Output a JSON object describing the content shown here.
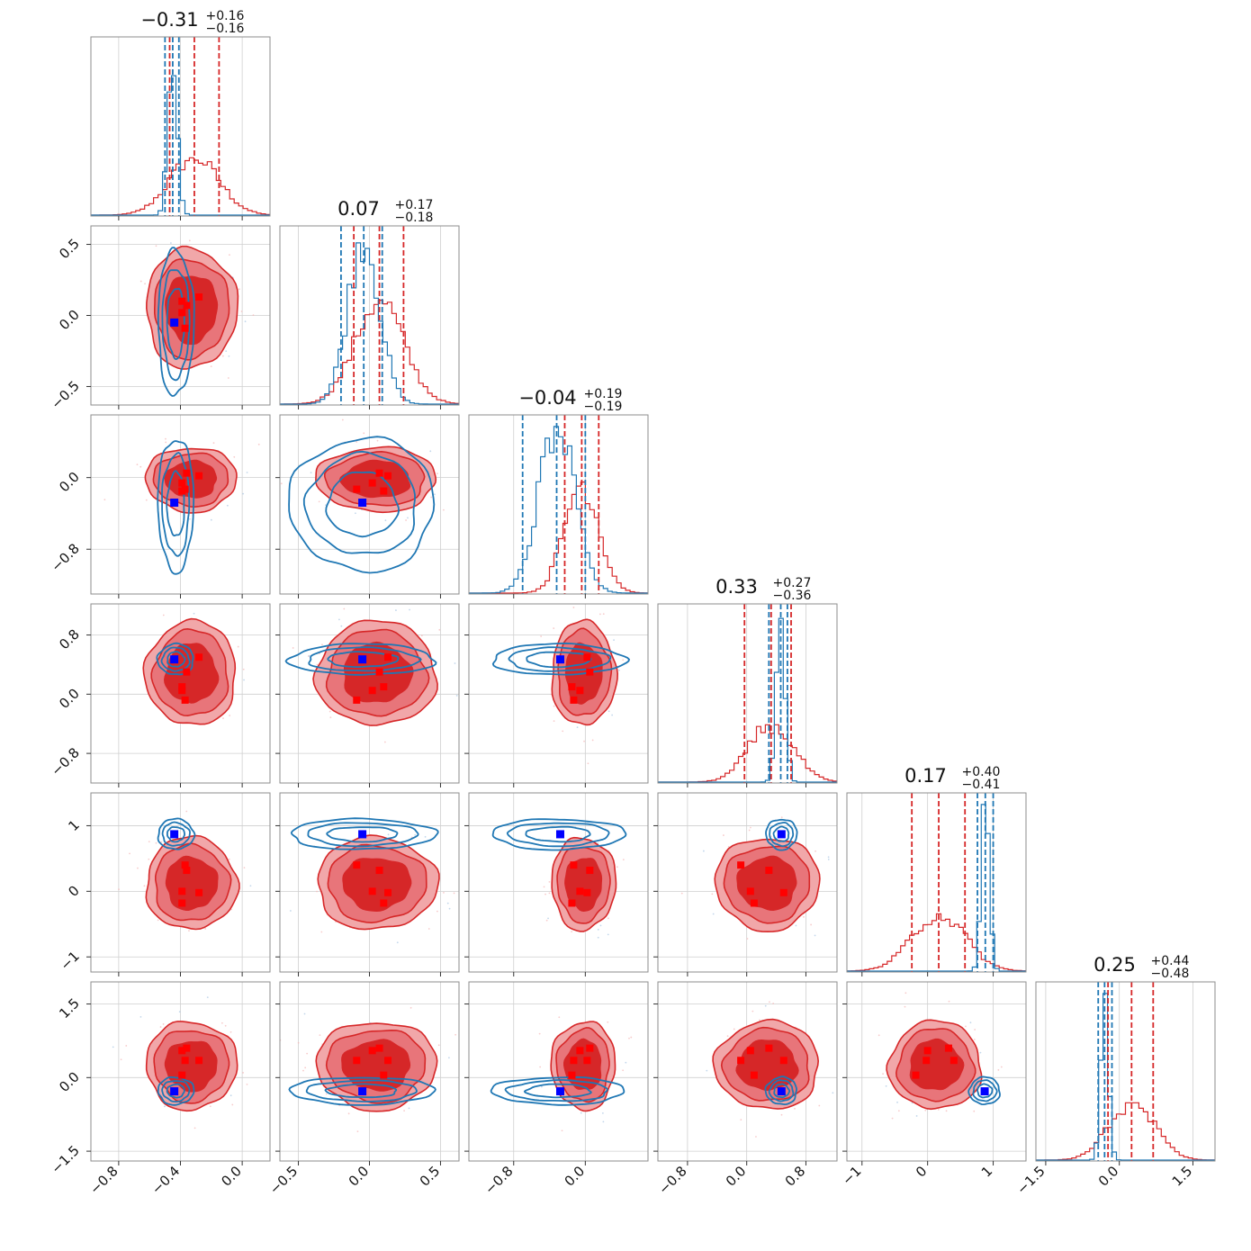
{
  "chart_data": {
    "type": "corner",
    "n_params": 6,
    "grid": true,
    "colors": {
      "red_posterior": "#d62728",
      "blue_posterior": "#1f77b4",
      "truth_marker": "#0000ff",
      "red_marker": "#ff0000"
    },
    "params": [
      {
        "median": "-0.31",
        "plus": "+0.16",
        "minus": "-0.16",
        "range": [
          -0.98,
          0.18
        ],
        "ticks": [
          -0.8,
          -0.4,
          0.0
        ],
        "tick_labels": [
          "−0.8",
          "−0.4",
          "0.0"
        ]
      },
      {
        "median": "0.07",
        "plus": "+0.17",
        "minus": "-0.18",
        "range": [
          -0.63,
          0.63
        ],
        "ticks": [
          -0.5,
          0.0,
          0.5
        ],
        "tick_labels": [
          "−0.5",
          "0.0",
          "0.5"
        ]
      },
      {
        "median": "-0.04",
        "plus": "+0.19",
        "minus": "-0.19",
        "range": [
          -1.3,
          0.7
        ],
        "ticks": [
          -0.8,
          0.0
        ],
        "tick_labels": [
          "−0.8",
          "0.0"
        ]
      },
      {
        "median": "0.33",
        "plus": "+0.27",
        "minus": "-0.36",
        "range": [
          -1.2,
          1.22
        ],
        "ticks": [
          -0.8,
          0.0,
          0.8
        ],
        "tick_labels": [
          "−0.8",
          "0.0",
          "0.8"
        ]
      },
      {
        "median": "0.17",
        "plus": "+0.40",
        "minus": "-0.41",
        "range": [
          -1.23,
          1.5
        ],
        "ticks": [
          -1,
          0,
          1
        ],
        "tick_labels": [
          "−1",
          "0",
          "1"
        ]
      },
      {
        "median": "0.25",
        "plus": "+0.44",
        "minus": "-0.48",
        "range": [
          -1.7,
          1.95
        ],
        "ticks": [
          -1.5,
          0.0,
          1.5
        ],
        "tick_labels": [
          "−1.5",
          "0.0",
          "1.5"
        ]
      }
    ],
    "red_quantiles": [
      [
        -0.47,
        -0.31,
        -0.15
      ],
      [
        -0.11,
        0.07,
        0.24
      ],
      [
        -0.23,
        -0.04,
        0.15
      ],
      [
        -0.03,
        0.33,
        0.6
      ],
      [
        -0.24,
        0.17,
        0.57
      ],
      [
        -0.23,
        0.25,
        0.69
      ]
    ],
    "blue_quantiles": [
      [
        -0.5,
        -0.45,
        -0.41
      ],
      [
        -0.2,
        -0.04,
        0.09
      ],
      [
        -0.7,
        -0.32,
        0.0
      ],
      [
        0.3,
        0.46,
        0.55
      ],
      [
        0.76,
        0.88,
        1.0
      ],
      [
        -0.43,
        -0.3,
        -0.15
      ]
    ],
    "red_hist_sd": [
      0.16,
      0.17,
      0.19,
      0.3,
      0.4,
      0.46
    ],
    "blue_hist_sd": [
      0.03,
      0.11,
      0.2,
      0.06,
      0.06,
      0.08
    ],
    "red_center_2d": [
      -0.33,
      0.05,
      -0.02,
      0.28,
      0.12,
      0.25
    ],
    "red_spread_2d": [
      0.23,
      0.33,
      0.28,
      0.55,
      0.55,
      0.7
    ],
    "blue_center_2d": [
      -0.43,
      -0.05,
      -0.3,
      0.47,
      0.87,
      -0.27
    ],
    "blue_spread_2d": [
      0.05,
      0.22,
      0.32,
      0.09,
      0.1,
      0.12
    ],
    "truth_blue": [
      -0.44,
      -0.05,
      -0.28,
      0.47,
      0.87,
      -0.28
    ],
    "red_markers": [
      [
        -0.28,
        0.13,
        0.02,
        0.5,
        -0.02,
        0.35
      ],
      [
        -0.36,
        0.07,
        0.05,
        0.3,
        0.32,
        0.6
      ],
      [
        -0.37,
        -0.09,
        -0.13,
        -0.08,
        0.4,
        0.35
      ],
      [
        -0.39,
        0.1,
        -0.15,
        0.1,
        -0.18,
        0.05
      ],
      [
        -0.39,
        0.02,
        -0.06,
        0.05,
        0.0,
        0.55
      ]
    ]
  }
}
